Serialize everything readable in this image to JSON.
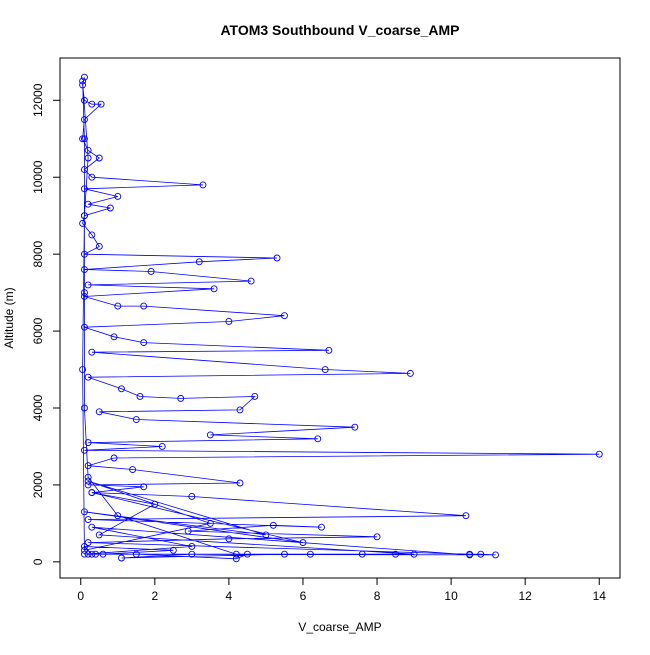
{
  "chart_data": {
    "type": "line",
    "title": "ATOM3 Southbound V_coarse_AMP",
    "x_label": "V_coarse_AMP",
    "y_label": "Altitude (m)",
    "x": [
      0.1,
      0.05,
      0.1,
      0.3,
      0.55,
      0.1,
      0.05,
      0.2,
      0.5,
      0.1,
      0.3,
      3.3,
      0.1,
      1.0,
      0.2,
      0.8,
      0.1,
      0.05,
      0.3,
      0.5,
      0.1,
      5.3,
      3.2,
      0.1,
      1.9,
      4.6,
      0.2,
      3.6,
      0.1,
      1.0,
      1.7,
      5.5,
      4.0,
      0.1,
      0.9,
      1.7,
      6.7,
      0.3,
      6.6,
      8.9,
      0.2,
      1.1,
      1.6,
      2.7,
      4.7,
      4.3,
      0.5,
      1.5,
      7.4,
      3.5,
      6.4,
      0.2,
      2.2,
      0.1,
      14.0,
      0.9,
      0.2,
      1.4,
      4.3,
      0.2,
      1.7,
      0.3,
      3.0,
      10.4,
      0.2,
      6.5,
      5.2,
      2.9,
      8.0,
      4.0,
      0.2,
      10.5,
      10.8,
      11.2,
      0.3,
      0.1,
      2.5,
      0.6,
      8.5,
      7.6,
      0.4,
      6.2,
      1.5,
      4.2,
      4.5,
      5.5,
      1.1,
      3.0,
      0.2,
      9.0,
      0.5,
      2.0,
      0.3,
      6.0,
      0.1,
      5.0,
      0.2,
      3.5,
      0.1,
      0.05,
      0.1,
      0.2,
      0.05,
      0.1,
      0.1,
      0.1,
      0.2,
      1.0,
      4.2,
      10.5,
      0.3,
      3.0,
      0.1
    ],
    "series": [
      {
        "name": "V_coarse_AMP",
        "color": "#0000ff",
        "values": [
          12600,
          12400,
          12000,
          11900,
          11900,
          11500,
          11000,
          10700,
          10500,
          10200,
          10000,
          9800,
          9700,
          9500,
          9300,
          9200,
          9000,
          8800,
          8500,
          8200,
          8000,
          7900,
          7800,
          7600,
          7550,
          7300,
          7200,
          7100,
          6900,
          6650,
          6650,
          6400,
          6250,
          6100,
          5850,
          5700,
          5500,
          5450,
          5000,
          4900,
          4800,
          4500,
          4300,
          4250,
          4300,
          3950,
          3900,
          3700,
          3500,
          3300,
          3200,
          3100,
          3000,
          2900,
          2800,
          2700,
          2500,
          2400,
          2050,
          2000,
          1950,
          1800,
          1700,
          1200,
          1100,
          900,
          950,
          800,
          650,
          600,
          500,
          200,
          200,
          180,
          200,
          400,
          300,
          200,
          200,
          200,
          200,
          200,
          200,
          80,
          200,
          200,
          100,
          200,
          200,
          200,
          700,
          1500,
          1800,
          500,
          1300,
          700,
          2100,
          1000,
          300,
          5000,
          9000,
          10500,
          12500,
          11000,
          7000,
          4000,
          2200,
          1200,
          200,
          180,
          900,
          400,
          200
        ]
      }
    ],
    "xlim": [
      -0.56,
      14.56
    ],
    "ylim": [
      -420,
      13100
    ],
    "xticks": [
      0,
      2,
      4,
      6,
      8,
      10,
      12,
      14
    ],
    "yticks": [
      0,
      2000,
      4000,
      6000,
      8000,
      10000,
      12000
    ]
  }
}
